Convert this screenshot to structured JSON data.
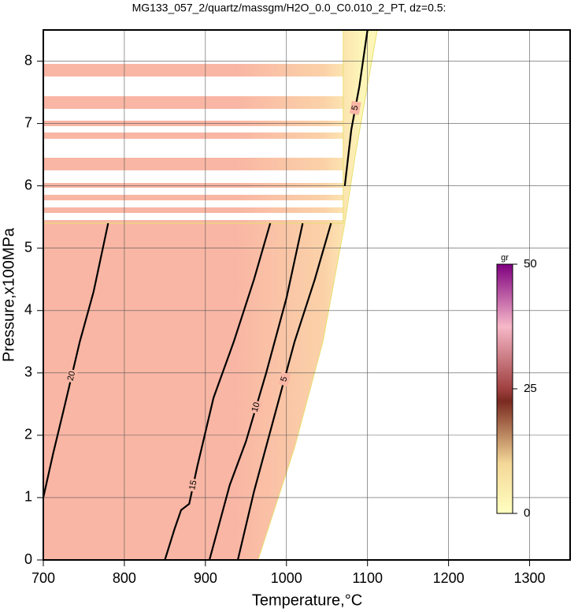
{
  "chart_data": {
    "type": "contour",
    "title": "MG133_057_2/quartz/massgm/H2O_0.0_C0.010_2_PT, dz=0.5:",
    "x_label": "Temperature,°C",
    "y_label": "Pressure,x100MPa",
    "xlim": [
      700,
      1350
    ],
    "ylim": [
      0,
      8.5
    ],
    "xticks": [
      700,
      800,
      900,
      1000,
      1100,
      1200,
      1300
    ],
    "yticks": [
      0,
      1,
      2,
      3,
      4,
      5,
      6,
      7,
      8
    ],
    "grid": true,
    "field": {
      "x": [
        700,
        965,
        1010,
        1045,
        1072,
        1085,
        1112,
        1070,
        1070,
        700
      ],
      "y": [
        0,
        0,
        1.8,
        3.5,
        5.4,
        6.5,
        8.5,
        8.5,
        5.4,
        5.4
      ]
    },
    "series": [
      {
        "name": "20",
        "x": [
          700,
          712,
          725,
          745,
          762,
          780
        ],
        "y": [
          1.0,
          1.7,
          2.4,
          3.5,
          4.3,
          5.4
        ]
      },
      {
        "name": "15",
        "x": [
          850,
          862,
          870,
          880,
          890,
          910,
          935,
          960,
          980
        ],
        "y": [
          0,
          0.5,
          0.8,
          0.9,
          1.5,
          2.6,
          3.5,
          4.5,
          5.4
        ]
      },
      {
        "name": "10",
        "x": [
          905,
          930,
          950,
          975,
          1000,
          1020
        ],
        "y": [
          0,
          1.2,
          1.9,
          3.0,
          4.2,
          5.4
        ]
      },
      {
        "name": "5",
        "x": [
          940,
          960,
          985,
          1010,
          1035,
          1055
        ],
        "y": [
          0,
          1.1,
          2.3,
          3.5,
          4.5,
          5.4
        ]
      },
      {
        "name": "5",
        "x": [
          1072,
          1080,
          1090,
          1100
        ],
        "y": [
          6.0,
          6.9,
          7.6,
          8.5
        ]
      }
    ],
    "colorbar": {
      "label": "gr",
      "lim": [
        0,
        50
      ],
      "ticks": [
        0,
        25,
        50
      ]
    }
  }
}
